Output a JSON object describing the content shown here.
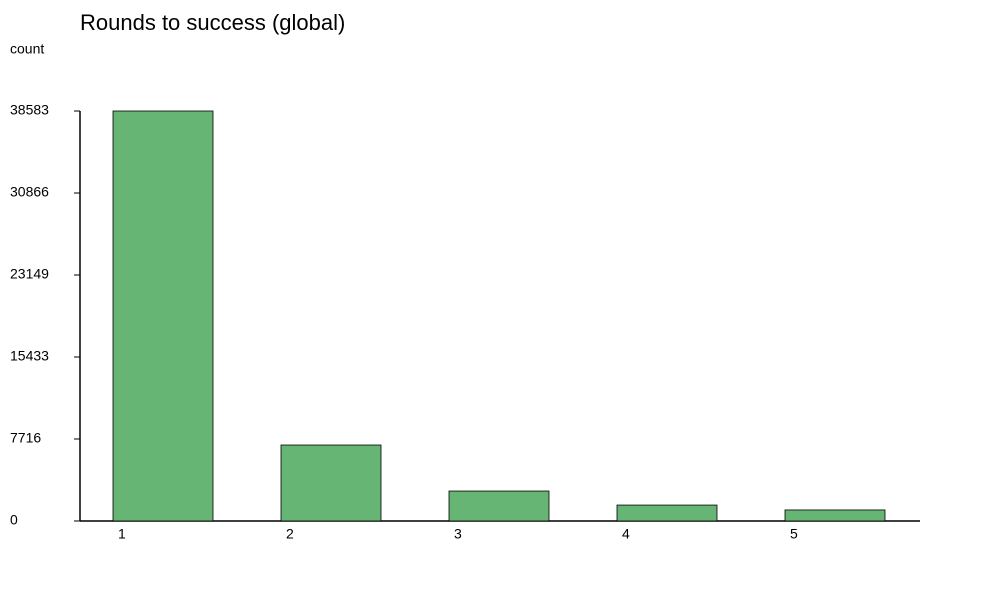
{
  "chart_data": {
    "type": "bar",
    "title": "Rounds to success (global)",
    "y_label": "count",
    "categories": [
      "1",
      "2",
      "3",
      "4",
      "5"
    ],
    "values": [
      38583,
      7150,
      2820,
      1500,
      1040
    ],
    "color": "#66b574",
    "ylim": [
      0,
      38583
    ],
    "yticks": [
      0,
      7716,
      15433,
      23149,
      30866,
      38583
    ],
    "grid": false
  }
}
